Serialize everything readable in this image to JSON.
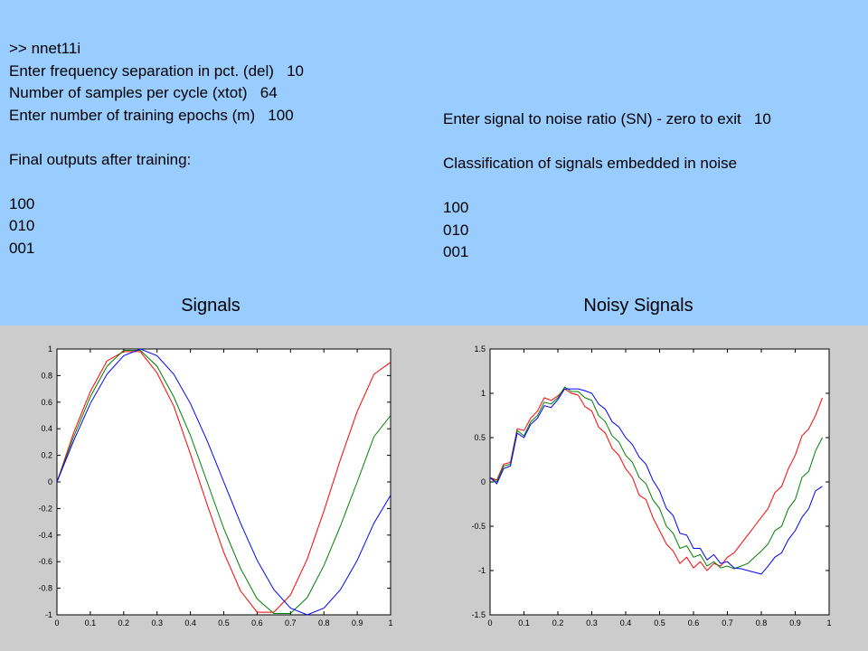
{
  "left_console": {
    "lines": [
      ">> nnet11i",
      "Enter frequency separation in pct. (del)   10",
      "Number of samples per cycle (xtot)   64",
      "Enter number of training epochs (m)   100",
      "",
      "Final outputs after training:",
      "",
      "100",
      "010",
      "001"
    ]
  },
  "right_console": {
    "lines": [
      "Enter signal to noise ratio (SN) - zero to exit   10",
      "",
      "Classification of signals embedded in noise",
      "",
      "100",
      "010",
      "001"
    ]
  },
  "captions": {
    "left": "Signals",
    "right": "Noisy Signals"
  },
  "chart_data": [
    {
      "type": "line",
      "title": "Signals",
      "xlim": [
        0,
        1
      ],
      "ylim": [
        -1,
        1
      ],
      "x_ticks": [
        "0",
        "0.1",
        "0.2",
        "0.3",
        "0.4",
        "0.5",
        "0.6",
        "0.7",
        "0.8",
        "0.9",
        "1"
      ],
      "y_ticks": [
        "1",
        "0.8",
        "0.6",
        "0.4",
        "0.2",
        "0",
        "-0.2",
        "-0.4",
        "-0.6",
        "-0.8",
        "-1"
      ],
      "x_tick_values": [
        0,
        0.1,
        0.2,
        0.3,
        0.4,
        0.5,
        0.6,
        0.7,
        0.8,
        0.9,
        1
      ],
      "y_tick_values": [
        1,
        0.8,
        0.6,
        0.4,
        0.2,
        0,
        -0.2,
        -0.4,
        -0.6,
        -0.8,
        -1
      ],
      "series": [
        {
          "color": "#ff0000",
          "x": [
            0,
            0.05,
            0.1,
            0.15,
            0.2,
            0.25,
            0.3,
            0.35,
            0.4,
            0.45,
            0.5,
            0.55,
            0.6,
            0.65,
            0.7,
            0.75,
            0.8,
            0.85,
            0.9,
            0.95,
            1
          ],
          "y": [
            0,
            0.37,
            0.68,
            0.91,
            0.98,
            0.98,
            0.82,
            0.57,
            0.21,
            -0.17,
            -0.53,
            -0.82,
            -0.98,
            -0.98,
            -0.85,
            -0.58,
            -0.22,
            0.17,
            0.53,
            0.81,
            0.9
          ]
        },
        {
          "color": "#008000",
          "x": [
            0,
            0.05,
            0.1,
            0.15,
            0.2,
            0.25,
            0.3,
            0.35,
            0.4,
            0.45,
            0.5,
            0.55,
            0.6,
            0.65,
            0.7,
            0.75,
            0.8,
            0.85,
            0.9,
            0.95,
            1
          ],
          "y": [
            0,
            0.34,
            0.64,
            0.87,
            0.99,
            0.99,
            0.87,
            0.64,
            0.35,
            0.0,
            -0.35,
            -0.65,
            -0.88,
            -0.99,
            -0.99,
            -0.87,
            -0.63,
            -0.33,
            0.0,
            0.34,
            0.5
          ]
        },
        {
          "color": "#0000ff",
          "x": [
            0,
            0.05,
            0.1,
            0.15,
            0.2,
            0.25,
            0.3,
            0.35,
            0.4,
            0.45,
            0.5,
            0.55,
            0.6,
            0.65,
            0.7,
            0.75,
            0.8,
            0.85,
            0.9,
            0.95,
            1
          ],
          "y": [
            0,
            0.31,
            0.59,
            0.81,
            0.95,
            1.0,
            0.95,
            0.81,
            0.59,
            0.31,
            0.0,
            -0.31,
            -0.59,
            -0.81,
            -0.95,
            -1.0,
            -0.95,
            -0.81,
            -0.59,
            -0.31,
            -0.1
          ]
        }
      ]
    },
    {
      "type": "line",
      "title": "Noisy Signals",
      "xlim": [
        0,
        1
      ],
      "ylim": [
        -1.5,
        1.5
      ],
      "x_ticks": [
        "0",
        "0.1",
        "0.2",
        "0.3",
        "0.4",
        "0.5",
        "0.6",
        "0.7",
        "0.8",
        "0.9",
        "1"
      ],
      "y_ticks": [
        "1.5",
        "1",
        "0.5",
        "0",
        "-0.5",
        "-1",
        "-1.5"
      ],
      "x_tick_values": [
        0,
        0.1,
        0.2,
        0.3,
        0.4,
        0.5,
        0.6,
        0.7,
        0.8,
        0.9,
        1
      ],
      "y_tick_values": [
        1.5,
        1,
        0.5,
        0,
        -0.5,
        -1,
        -1.5
      ],
      "series": [
        {
          "color": "#ff0000",
          "x": [
            0,
            0.02,
            0.04,
            0.06,
            0.08,
            0.1,
            0.12,
            0.14,
            0.16,
            0.18,
            0.2,
            0.22,
            0.24,
            0.26,
            0.28,
            0.3,
            0.32,
            0.34,
            0.36,
            0.38,
            0.4,
            0.42,
            0.44,
            0.46,
            0.48,
            0.5,
            0.52,
            0.54,
            0.56,
            0.58,
            0.6,
            0.62,
            0.64,
            0.66,
            0.68,
            0.7,
            0.72,
            0.74,
            0.76,
            0.78,
            0.8,
            0.82,
            0.84,
            0.86,
            0.88,
            0.9,
            0.92,
            0.94,
            0.96,
            0.98
          ],
          "y": [
            0.05,
            0.02,
            0.2,
            0.22,
            0.6,
            0.58,
            0.72,
            0.8,
            0.95,
            0.92,
            0.97,
            1.05,
            1.0,
            0.98,
            0.85,
            0.8,
            0.62,
            0.55,
            0.38,
            0.3,
            0.15,
            0.05,
            -0.15,
            -0.2,
            -0.4,
            -0.55,
            -0.7,
            -0.78,
            -0.92,
            -0.85,
            -0.97,
            -0.9,
            -1.0,
            -0.92,
            -0.95,
            -0.85,
            -0.8,
            -0.7,
            -0.6,
            -0.5,
            -0.4,
            -0.3,
            -0.12,
            -0.05,
            0.15,
            0.3,
            0.52,
            0.6,
            0.75,
            0.95
          ]
        },
        {
          "color": "#008000",
          "x": [
            0,
            0.02,
            0.04,
            0.06,
            0.08,
            0.1,
            0.12,
            0.14,
            0.16,
            0.18,
            0.2,
            0.22,
            0.24,
            0.26,
            0.28,
            0.3,
            0.32,
            0.34,
            0.36,
            0.38,
            0.4,
            0.42,
            0.44,
            0.46,
            0.48,
            0.5,
            0.52,
            0.54,
            0.56,
            0.58,
            0.6,
            0.62,
            0.64,
            0.66,
            0.68,
            0.7,
            0.72,
            0.74,
            0.76,
            0.78,
            0.8,
            0.82,
            0.84,
            0.86,
            0.88,
            0.9,
            0.92,
            0.94,
            0.96,
            0.98
          ],
          "y": [
            0.05,
            0.0,
            0.18,
            0.2,
            0.58,
            0.52,
            0.68,
            0.75,
            0.9,
            0.88,
            0.95,
            1.07,
            1.02,
            1.02,
            0.95,
            0.92,
            0.75,
            0.68,
            0.52,
            0.45,
            0.3,
            0.22,
            0.05,
            -0.02,
            -0.2,
            -0.3,
            -0.5,
            -0.58,
            -0.75,
            -0.72,
            -0.85,
            -0.82,
            -0.95,
            -0.9,
            -0.97,
            -0.95,
            -0.98,
            -0.95,
            -0.92,
            -0.85,
            -0.78,
            -0.7,
            -0.55,
            -0.5,
            -0.3,
            -0.2,
            0.05,
            0.12,
            0.35,
            0.5
          ]
        },
        {
          "color": "#0000ff",
          "x": [
            0,
            0.02,
            0.04,
            0.06,
            0.08,
            0.1,
            0.12,
            0.14,
            0.16,
            0.18,
            0.2,
            0.22,
            0.24,
            0.26,
            0.28,
            0.3,
            0.32,
            0.34,
            0.36,
            0.38,
            0.4,
            0.42,
            0.44,
            0.46,
            0.48,
            0.5,
            0.52,
            0.54,
            0.56,
            0.58,
            0.6,
            0.62,
            0.64,
            0.66,
            0.68,
            0.7,
            0.72,
            0.74,
            0.76,
            0.78,
            0.8,
            0.82,
            0.84,
            0.86,
            0.88,
            0.9,
            0.92,
            0.94,
            0.96,
            0.98
          ],
          "y": [
            0.05,
            -0.02,
            0.15,
            0.18,
            0.55,
            0.5,
            0.65,
            0.72,
            0.86,
            0.84,
            0.93,
            1.05,
            1.05,
            1.05,
            1.03,
            1.0,
            0.88,
            0.82,
            0.68,
            0.62,
            0.5,
            0.42,
            0.28,
            0.2,
            0.02,
            -0.1,
            -0.3,
            -0.38,
            -0.58,
            -0.6,
            -0.75,
            -0.75,
            -0.88,
            -0.82,
            -0.92,
            -0.9,
            -0.97,
            -0.98,
            -1.0,
            -1.02,
            -1.04,
            -0.95,
            -0.85,
            -0.8,
            -0.65,
            -0.55,
            -0.4,
            -0.3,
            -0.1,
            -0.05
          ]
        }
      ]
    }
  ]
}
